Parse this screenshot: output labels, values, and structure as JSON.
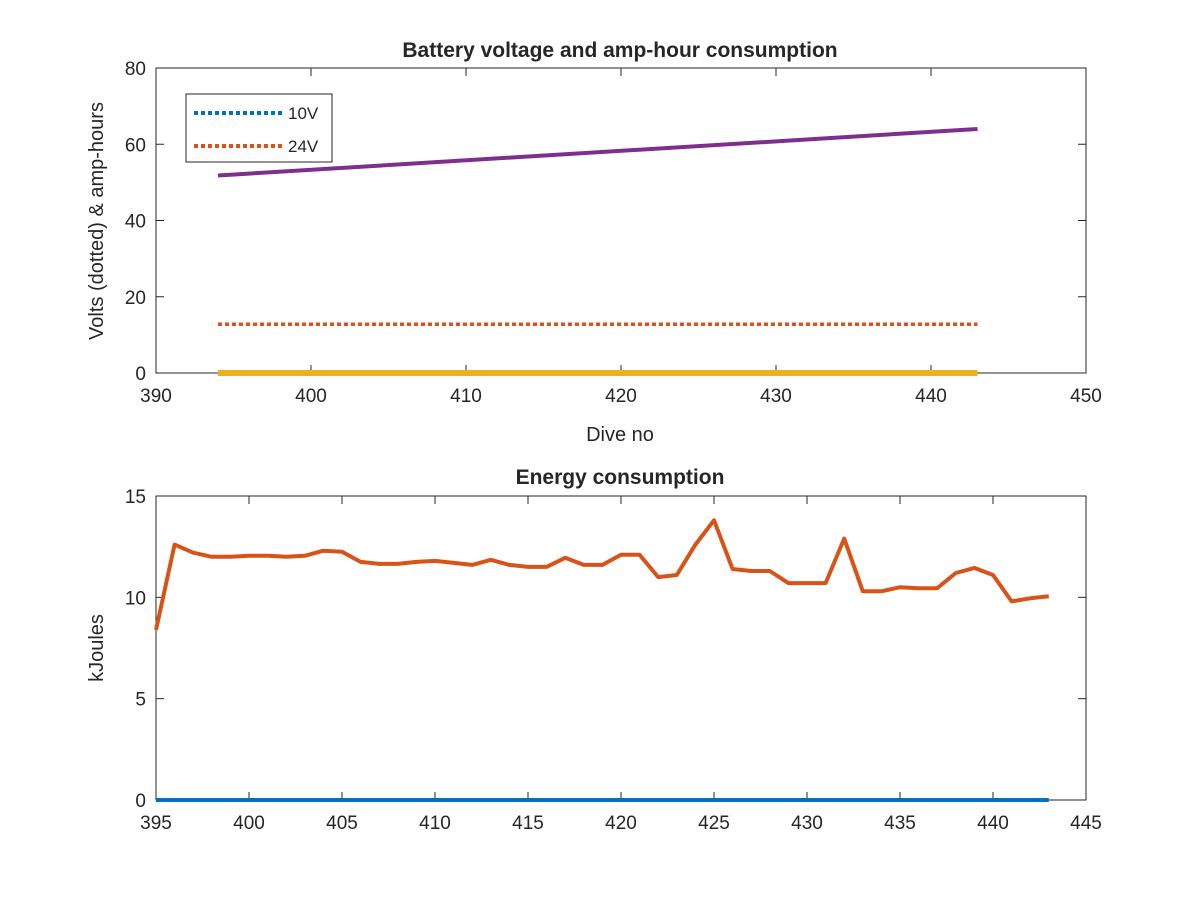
{
  "chart_data": [
    {
      "type": "line",
      "title": "Battery voltage and amp-hour consumption",
      "xlabel": "Dive no",
      "ylabel": "Volts (dotted) & amp-hours",
      "xlim": [
        390,
        450
      ],
      "ylim": [
        0,
        80
      ],
      "xticks": [
        390,
        400,
        410,
        420,
        430,
        440,
        450
      ],
      "yticks": [
        0,
        20,
        40,
        60,
        80
      ],
      "legend_placement": "top-left",
      "series": [
        {
          "name": "10V",
          "style": "dotted",
          "color": "#0072BD",
          "x": [
            394,
            443
          ],
          "y": [
            12.8,
            12.8
          ]
        },
        {
          "name": "24V",
          "style": "dotted",
          "color": "#D95319",
          "x": [
            394,
            443
          ],
          "y": [
            12.8,
            12.8
          ]
        },
        {
          "style": "solid",
          "color": "#EDB120",
          "x": [
            394,
            443
          ],
          "y": [
            0,
            0
          ]
        },
        {
          "style": "solid",
          "color": "#7E2F8E",
          "x": [
            394,
            443
          ],
          "y": [
            51.8,
            64.0
          ]
        }
      ]
    },
    {
      "type": "line",
      "title": "Energy consumption",
      "xlabel": "",
      "ylabel": "kJoules",
      "xlim": [
        395,
        445
      ],
      "ylim": [
        0,
        15
      ],
      "xticks": [
        395,
        400,
        405,
        410,
        415,
        420,
        425,
        430,
        435,
        440,
        445
      ],
      "yticks": [
        0,
        5,
        10,
        15
      ],
      "series": [
        {
          "style": "solid",
          "color": "#0072BD",
          "x": [
            395,
            443
          ],
          "y": [
            0,
            0
          ]
        },
        {
          "style": "solid",
          "color": "#D95319",
          "x": [
            395,
            396,
            397,
            398,
            399,
            400,
            401,
            402,
            403,
            404,
            405,
            406,
            407,
            408,
            409,
            410,
            411,
            412,
            413,
            414,
            415,
            416,
            417,
            418,
            419,
            420,
            421,
            422,
            423,
            424,
            425,
            426,
            427,
            428,
            429,
            430,
            431,
            432,
            433,
            434,
            435,
            436,
            437,
            438,
            439,
            440,
            441,
            442,
            443
          ],
          "y": [
            8.4,
            12.6,
            12.2,
            12.0,
            12.0,
            12.05,
            12.05,
            12.0,
            12.05,
            12.3,
            12.25,
            11.75,
            11.65,
            11.65,
            11.75,
            11.8,
            11.7,
            11.6,
            11.85,
            11.6,
            11.5,
            11.5,
            11.95,
            11.6,
            11.6,
            12.1,
            12.1,
            11.0,
            11.1,
            12.6,
            13.8,
            11.4,
            11.3,
            11.3,
            10.7,
            10.7,
            10.7,
            12.9,
            10.3,
            10.3,
            10.5,
            10.45,
            10.45,
            11.2,
            11.45,
            11.1,
            9.8,
            9.95,
            10.05
          ]
        }
      ]
    }
  ]
}
